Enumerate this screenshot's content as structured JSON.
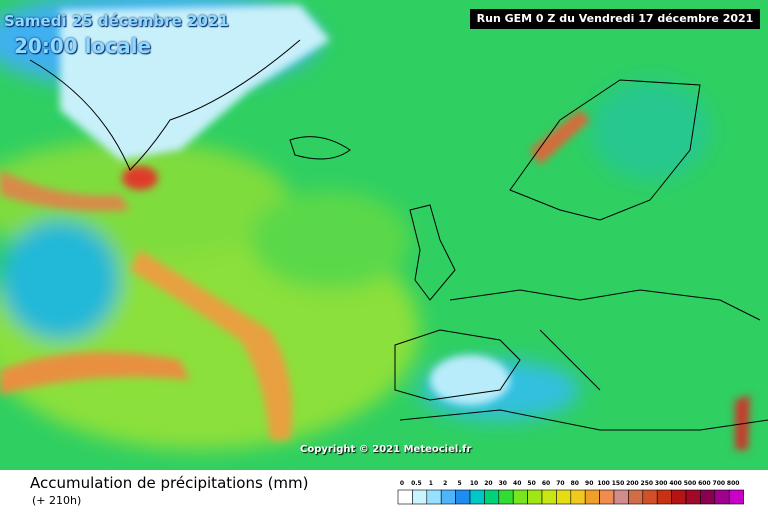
{
  "header": {
    "date": "Samedi 25 décembre 2021",
    "time": "20:00 locale",
    "run": "Run GEM 0 Z du Vendredi 17 décembre 2021"
  },
  "copyright": "Copyright © 2021 Meteociel.fr",
  "footer": {
    "title": "Accumulation de précipitations (mm)",
    "lead": "(+ 210h)"
  },
  "legend": {
    "values": [
      0,
      0.5,
      1,
      2,
      5,
      10,
      20,
      30,
      40,
      50,
      60,
      70,
      80,
      90,
      100,
      150,
      200,
      250,
      300,
      400,
      500,
      600,
      700,
      800
    ],
    "colors": [
      "#ffffff",
      "#c8f5ff",
      "#96e1ff",
      "#50b4fa",
      "#1e8cf0",
      "#00c8c8",
      "#00d278",
      "#32dc32",
      "#78e61e",
      "#a0e614",
      "#c8e614",
      "#e6dc14",
      "#f0c81e",
      "#f0a028",
      "#f08c50",
      "#d28c8c",
      "#d26e46",
      "#d25028",
      "#c83214",
      "#b41414",
      "#a00a28",
      "#8c0050",
      "#a0008c",
      "#c800c8"
    ]
  }
}
